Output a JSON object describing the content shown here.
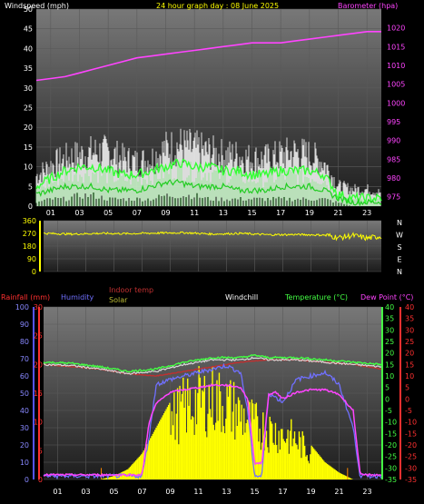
{
  "title": "24 hour graph day : 08 June 2025",
  "colors": {
    "bg": "#000000",
    "wind_label": "#ffffff",
    "baro": "#ff44ff",
    "dir_trace": "#ffff00",
    "rain": "#ff3030",
    "humidity": "#7070ff",
    "indoor": "#c03030",
    "solar": "#ffff00",
    "windchill": "#ffffff",
    "temperature": "#44ff44",
    "dewpoint": "#ff44ff",
    "grid": "#5a5a5a"
  },
  "chart_data": [
    {
      "type": "line",
      "id": "wind",
      "labels": {
        "left": "Windspeed (mph)",
        "right": "Barometer (hpa)"
      },
      "x_ticks": [
        "01",
        "03",
        "05",
        "07",
        "09",
        "11",
        "13",
        "15",
        "17",
        "19",
        "21",
        "23"
      ],
      "y_left": {
        "range": [
          0,
          50
        ],
        "ticks": [
          "0",
          "5",
          "10",
          "15",
          "20",
          "25",
          "30",
          "35",
          "40",
          "45",
          "50"
        ]
      },
      "y_right": {
        "range": [
          972.5,
          1025
        ],
        "ticks": [
          "975",
          "980",
          "985",
          "990",
          "995",
          "1000",
          "1005",
          "1010",
          "1015",
          "1020"
        ]
      },
      "series": [
        {
          "role": "barometer",
          "axis": "right",
          "x": [
            0,
            1,
            2,
            3,
            4,
            5,
            6,
            7,
            8,
            9,
            10,
            11,
            12,
            13,
            14,
            15,
            16,
            17,
            18,
            19,
            20,
            21,
            22,
            23,
            24
          ],
          "values": [
            1006,
            1006.5,
            1007,
            1008,
            1009,
            1010,
            1011,
            1012,
            1012.5,
            1013,
            1013.5,
            1014,
            1014.5,
            1015,
            1015.5,
            1016,
            1016,
            1016,
            1016.5,
            1017,
            1017.5,
            1018,
            1018.5,
            1019,
            1019
          ]
        },
        {
          "role": "gust_max",
          "axis": "left",
          "x": [
            0,
            1,
            2,
            3,
            4,
            5,
            6,
            7,
            8,
            9,
            10,
            11,
            12,
            13,
            14,
            15,
            16,
            17,
            18,
            19,
            20,
            21,
            22,
            23,
            24
          ],
          "values": [
            9,
            12,
            14,
            15,
            16,
            16,
            14,
            13,
            14,
            17,
            18,
            17,
            16,
            15,
            15,
            14,
            14,
            15,
            16,
            15,
            13,
            6,
            5,
            5,
            4
          ]
        },
        {
          "role": "gust_mean",
          "axis": "left",
          "x": [
            0,
            1,
            2,
            3,
            4,
            5,
            6,
            7,
            8,
            9,
            10,
            11,
            12,
            13,
            14,
            15,
            16,
            17,
            18,
            19,
            20,
            21,
            22,
            23,
            24
          ],
          "values": [
            5,
            7,
            9,
            10,
            10,
            9,
            8,
            8,
            9,
            10,
            11,
            10,
            10,
            9,
            9,
            8,
            8,
            9,
            9,
            9,
            8,
            3,
            2,
            2,
            2
          ]
        },
        {
          "role": "wind_mean",
          "axis": "left",
          "x": [
            0,
            1,
            2,
            3,
            4,
            5,
            6,
            7,
            8,
            9,
            10,
            11,
            12,
            13,
            14,
            15,
            16,
            17,
            18,
            19,
            20,
            21,
            22,
            23,
            24
          ],
          "values": [
            3,
            4,
            5,
            5,
            5,
            4,
            4,
            4,
            5,
            6,
            6,
            5,
            5,
            5,
            4,
            4,
            4,
            5,
            5,
            5,
            4,
            2,
            1,
            1,
            1
          ]
        },
        {
          "role": "wind_low",
          "axis": "left",
          "x": [
            0,
            1,
            2,
            3,
            4,
            5,
            6,
            7,
            8,
            9,
            10,
            11,
            12,
            13,
            14,
            15,
            16,
            17,
            18,
            19,
            20,
            21,
            22,
            23,
            24
          ],
          "values": [
            1,
            2,
            2,
            3,
            3,
            2,
            2,
            2,
            2,
            3,
            3,
            3,
            2,
            2,
            2,
            2,
            2,
            2,
            2,
            2,
            2,
            1,
            0,
            0,
            0
          ]
        }
      ]
    },
    {
      "type": "line",
      "id": "direction",
      "y_left": {
        "range": [
          0,
          360
        ],
        "ticks": [
          "0",
          "90",
          "180",
          "270",
          "360"
        ]
      },
      "y_right_labels": [
        "N",
        "W",
        "S",
        "E",
        "N"
      ],
      "series": [
        {
          "role": "direction",
          "x": [
            0,
            2,
            4,
            6,
            8,
            10,
            12,
            14,
            16,
            18,
            20,
            21,
            22,
            23,
            24
          ],
          "values": [
            270,
            265,
            270,
            268,
            272,
            275,
            265,
            270,
            260,
            262,
            258,
            240,
            255,
            235,
            250
          ]
        }
      ]
    },
    {
      "type": "line",
      "id": "temperature",
      "labels": {
        "rain": "Rainfall (mm)",
        "humidity": "Humidity",
        "indoor": "Indoor temp",
        "solar": "Solar",
        "windchill": "Windchill",
        "temp": "Temperature (°C)",
        "dew": "Dew Point (°C)"
      },
      "x_ticks": [
        "01",
        "03",
        "05",
        "07",
        "09",
        "11",
        "13",
        "15",
        "17",
        "19",
        "21",
        "23"
      ],
      "humidity_axis": {
        "range": [
          0,
          100
        ],
        "ticks": [
          "0",
          "10",
          "20",
          "30",
          "40",
          "50",
          "60",
          "70",
          "80",
          "90",
          "100"
        ]
      },
      "rain_axis": {
        "range": [
          0,
          30
        ],
        "ticks": [
          "0",
          "5",
          "10",
          "15",
          "20",
          "25",
          "30"
        ]
      },
      "temp_axis": {
        "range": [
          -35,
          40
        ],
        "ticks": [
          "-35",
          "-30",
          "-25",
          "-20",
          "-15",
          "-10",
          "-5",
          "0",
          "5",
          "10",
          "15",
          "20",
          "25",
          "30",
          "35",
          "40"
        ]
      },
      "series": [
        {
          "role": "solar",
          "axis": "humidity",
          "x": [
            0,
            4,
            5,
            6,
            7,
            8,
            9,
            10,
            11,
            12,
            13,
            14,
            15,
            16,
            17,
            18,
            19,
            20,
            21,
            22,
            24
          ],
          "values": [
            0,
            0,
            2,
            6,
            15,
            30,
            45,
            55,
            60,
            62,
            58,
            50,
            42,
            38,
            35,
            30,
            20,
            10,
            4,
            0,
            0
          ]
        },
        {
          "role": "dewpoint",
          "axis": "temp",
          "x": [
            0,
            1,
            2,
            3,
            4,
            5,
            6,
            6.5,
            7,
            7.5,
            8,
            9,
            10,
            11,
            12,
            13,
            14,
            14.5,
            15,
            15.5,
            16,
            16.5,
            17,
            18,
            19,
            20,
            21,
            22,
            22.5,
            23,
            24
          ],
          "values": [
            -33,
            -33,
            -33,
            -33,
            -33,
            -33,
            -33,
            -33,
            -33,
            -10,
            -2,
            3,
            4,
            5,
            6,
            6,
            5,
            0,
            -28,
            -28,
            2,
            3,
            0,
            3,
            4,
            4,
            2,
            -5,
            -33,
            -33,
            -33
          ]
        },
        {
          "role": "humidity",
          "axis": "humidity",
          "x": [
            0,
            6,
            7,
            7.5,
            8,
            9,
            10,
            11,
            12,
            13,
            14,
            14.5,
            15,
            15.5,
            16,
            17,
            18,
            19,
            20,
            21,
            22,
            22.5,
            24
          ],
          "values": [
            2,
            2,
            2,
            25,
            55,
            58,
            60,
            62,
            64,
            66,
            62,
            40,
            2,
            2,
            50,
            45,
            58,
            60,
            62,
            55,
            30,
            2,
            2
          ]
        },
        {
          "role": "indoor_temp",
          "axis": "temp",
          "x": [
            0,
            2,
            4,
            6,
            8,
            10,
            12,
            14,
            16,
            18,
            20,
            22,
            24
          ],
          "values": [
            15,
            14,
            13,
            11,
            10,
            12,
            14,
            16,
            17,
            17,
            16,
            15,
            13
          ]
        },
        {
          "role": "temperature",
          "axis": "temp",
          "x": [
            0,
            2,
            4,
            6,
            8,
            10,
            12,
            14,
            15,
            16,
            17,
            18,
            20,
            22,
            24
          ],
          "values": [
            16,
            15.5,
            14,
            12,
            13,
            16,
            18,
            18,
            19,
            18,
            18,
            18,
            17,
            16,
            15
          ]
        },
        {
          "role": "windchill",
          "axis": "temp",
          "x": [
            0,
            2,
            4,
            6,
            8,
            10,
            12,
            14,
            15,
            16,
            17,
            18,
            20,
            22,
            24
          ],
          "values": [
            15,
            14.5,
            13,
            11,
            12,
            15,
            17,
            17,
            18,
            17,
            17,
            17,
            16,
            15,
            14
          ]
        },
        {
          "role": "rain",
          "axis": "rain",
          "x": [
            0,
            4,
            4.1,
            4.2,
            21.5,
            21.6,
            21.7,
            24
          ],
          "values": [
            0,
            0,
            2,
            0,
            0,
            2,
            0,
            0
          ]
        }
      ]
    }
  ]
}
